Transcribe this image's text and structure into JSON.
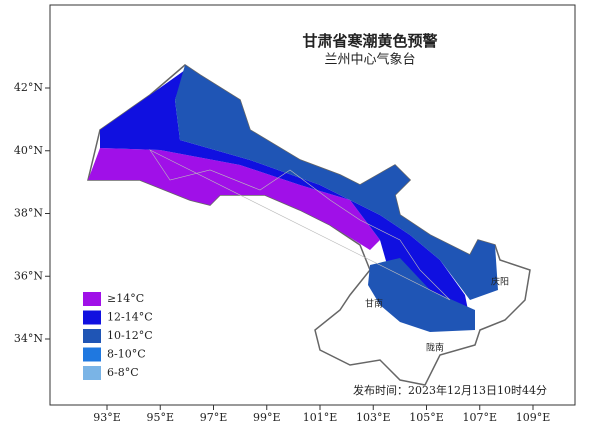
{
  "title": "甘肃省寒潮黄色预警",
  "subtitle": "兰州中心气象台",
  "axes": {
    "latitude_labels": [
      "42°N",
      "40°N",
      "38°N",
      "36°N",
      "34°N"
    ],
    "longitude_labels": [
      "93°E",
      "95°E",
      "97°E",
      "99°E",
      "101°E",
      "103°E",
      "105°E",
      "107°E",
      "109°E"
    ]
  },
  "legend": [
    {
      "label": "≥14°C",
      "color": "#a010e8"
    },
    {
      "label": "12-14°C",
      "color": "#1010e0"
    },
    {
      "label": "10-12°C",
      "color": "#1f55b5"
    },
    {
      "label": "8-10°C",
      "color": "#1f78e0"
    },
    {
      "label": "6-8°C",
      "color": "#7ab4e6"
    }
  ],
  "place_labels": [
    "甘南",
    "陇南",
    "庆阳"
  ],
  "issue_time": "发布时间：2023年12月13日10时44分"
}
